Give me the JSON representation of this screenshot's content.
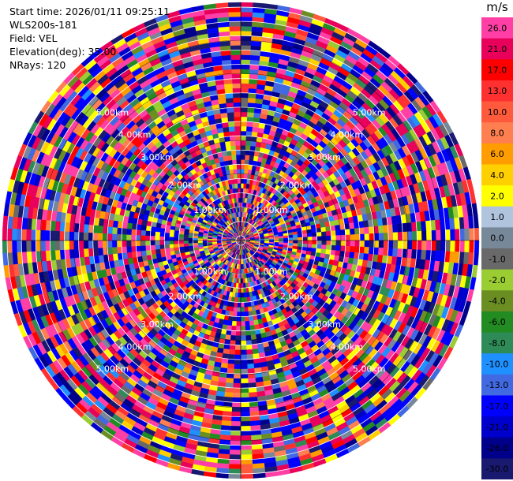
{
  "header": {
    "start_time": "Start time: 2026/01/11 09:25:11",
    "instrument": "WLS200s-181",
    "field": "Field: VEL",
    "elevation": "Elevation(deg): 35.00",
    "nrays": "NRays: 120"
  },
  "colorbar": {
    "unit": "m/s",
    "levels": [
      {
        "label": "26.0",
        "color": "#ff3fa6"
      },
      {
        "label": "21.0",
        "color": "#e8005a"
      },
      {
        "label": "17.0",
        "color": "#ff0000"
      },
      {
        "label": "13.0",
        "color": "#ff3030"
      },
      {
        "label": "10.0",
        "color": "#ff5a3c"
      },
      {
        "label": "8.0",
        "color": "#ff7f50"
      },
      {
        "label": "6.0",
        "color": "#ff9d00"
      },
      {
        "label": "4.0",
        "color": "#ffd000"
      },
      {
        "label": "2.0",
        "color": "#ffff00"
      },
      {
        "label": "1.0",
        "color": "#b0c4de"
      },
      {
        "label": "0.0",
        "color": "#778899"
      },
      {
        "label": "-1.0",
        "color": "#696969"
      },
      {
        "label": "-2.0",
        "color": "#9acd32"
      },
      {
        "label": "-4.0",
        "color": "#6b8e23"
      },
      {
        "label": "-6.0",
        "color": "#228b22"
      },
      {
        "label": "-8.0",
        "color": "#2e8b57"
      },
      {
        "label": "-10.0",
        "color": "#1e90ff"
      },
      {
        "label": "-13.0",
        "color": "#4169e1"
      },
      {
        "label": "-17.0",
        "color": "#0000ff"
      },
      {
        "label": "-21.0",
        "color": "#0000cd"
      },
      {
        "label": "-26.0",
        "color": "#00008b"
      },
      {
        "label": "-30.0",
        "color": "#191970"
      }
    ]
  },
  "chart_data": {
    "type": "heatmap",
    "projection": "polar-ppi",
    "field": "VEL",
    "unit": "m/s",
    "n_rays": 120,
    "range_rings_km": [
      "1.00km",
      "2.00km",
      "3.00km",
      "4.00km",
      "5.00km"
    ],
    "vmin": -30.0,
    "vmax": 26.0
  }
}
